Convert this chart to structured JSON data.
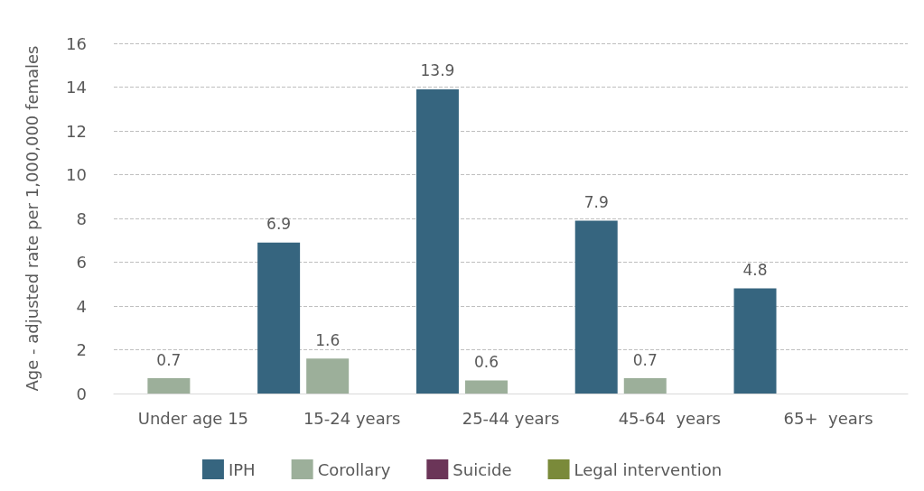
{
  "chart_data": {
    "type": "bar",
    "ylabel": "Age - adjusted rate per 1,000,000 females",
    "categories": [
      "Under age 15",
      "15-24 years",
      "25-44 years",
      "45-64  years",
      "65+  years"
    ],
    "series": [
      {
        "name": "IPH",
        "color": "#36657f",
        "values": [
          null,
          6.9,
          13.9,
          7.9,
          4.8
        ]
      },
      {
        "name": "Corollary",
        "color": "#9caf9a",
        "values": [
          0.7,
          1.6,
          0.6,
          0.7,
          null
        ]
      },
      {
        "name": "Suicide",
        "color": "#6b3558",
        "values": [
          null,
          null,
          null,
          null,
          null
        ]
      },
      {
        "name": "Legal intervention",
        "color": "#7a8a3a",
        "values": [
          null,
          null,
          null,
          null,
          null
        ]
      }
    ],
    "ylim": [
      0,
      16
    ],
    "yticks": [
      0,
      2,
      4,
      6,
      8,
      10,
      12,
      14,
      16
    ],
    "grid": "y",
    "legend": "bottom",
    "data_labels": true
  }
}
